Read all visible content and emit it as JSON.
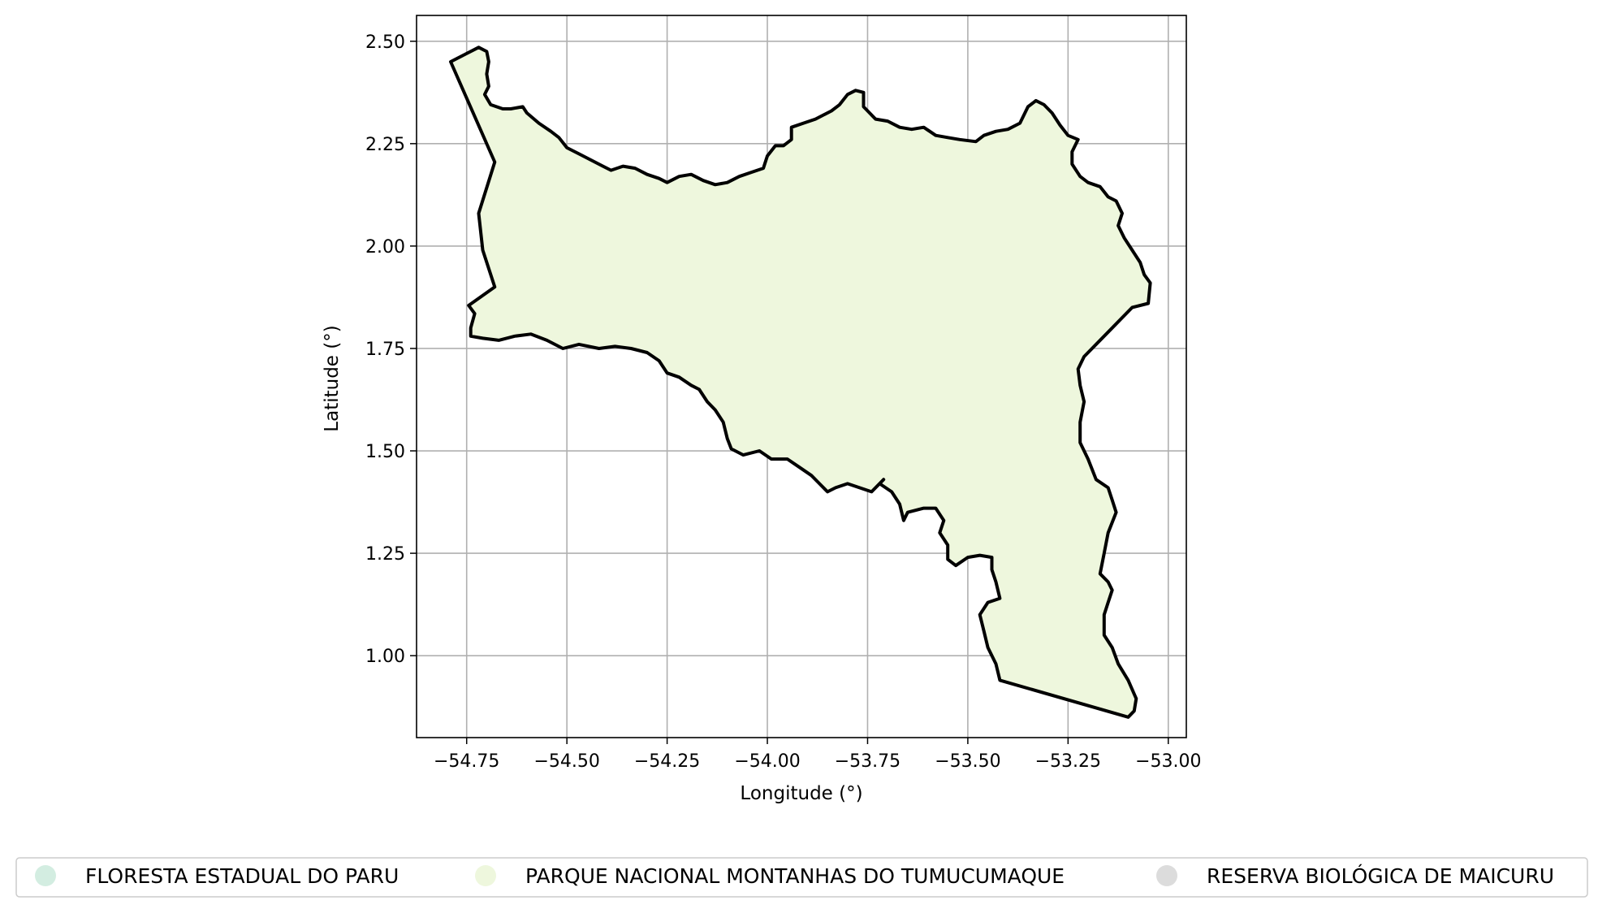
{
  "chart_data": {
    "type": "map",
    "xlabel": "Longitude (°)",
    "ylabel": "Latitude (°)",
    "xlim": [
      -54.875,
      -52.955
    ],
    "ylim": [
      0.8,
      2.563
    ],
    "x_ticks": [
      -54.75,
      -54.5,
      -54.25,
      -54.0,
      -53.75,
      -53.5,
      -53.25,
      -53.0
    ],
    "x_tick_labels": [
      "−54.75",
      "−54.50",
      "−54.25",
      "−54.00",
      "−53.75",
      "−53.50",
      "−53.25",
      "−53.00"
    ],
    "y_ticks": [
      1.0,
      1.25,
      1.5,
      1.75,
      2.0,
      2.25,
      2.5
    ],
    "y_tick_labels": [
      "1.00",
      "1.25",
      "1.50",
      "1.75",
      "2.00",
      "2.25",
      "2.50"
    ],
    "grid": true,
    "legend": {
      "placement": "bottom",
      "entries": [
        {
          "label": "FLORESTA ESTADUAL DO PARU",
          "color": "#d3ede1"
        },
        {
          "label": "PARQUE NACIONAL MONTANHAS DO TUMUCUMAQUE",
          "color": "#eef7dd"
        },
        {
          "label": "RESERVA BIOLÓGICA DE MAICURU",
          "color": "#dcdcdc"
        }
      ]
    },
    "regions": [
      {
        "name": "PARQUE NACIONAL MONTANHAS DO TUMUCUMAQUE",
        "fill": "#eef7dd",
        "stroke": "#000000",
        "boundary": [
          [
            -54.79,
            2.45
          ],
          [
            -54.75,
            2.47
          ],
          [
            -54.72,
            2.485
          ],
          [
            -54.7,
            2.475
          ],
          [
            -54.695,
            2.45
          ],
          [
            -54.7,
            2.42
          ],
          [
            -54.695,
            2.39
          ],
          [
            -54.705,
            2.37
          ],
          [
            -54.69,
            2.345
          ],
          [
            -54.66,
            2.335
          ],
          [
            -54.64,
            2.335
          ],
          [
            -54.61,
            2.34
          ],
          [
            -54.6,
            2.325
          ],
          [
            -54.57,
            2.3
          ],
          [
            -54.54,
            2.28
          ],
          [
            -54.52,
            2.265
          ],
          [
            -54.5,
            2.24
          ],
          [
            -54.47,
            2.225
          ],
          [
            -54.44,
            2.21
          ],
          [
            -54.41,
            2.195
          ],
          [
            -54.39,
            2.185
          ],
          [
            -54.36,
            2.195
          ],
          [
            -54.33,
            2.19
          ],
          [
            -54.3,
            2.175
          ],
          [
            -54.27,
            2.165
          ],
          [
            -54.25,
            2.155
          ],
          [
            -54.22,
            2.17
          ],
          [
            -54.19,
            2.175
          ],
          [
            -54.16,
            2.16
          ],
          [
            -54.13,
            2.15
          ],
          [
            -54.1,
            2.155
          ],
          [
            -54.07,
            2.17
          ],
          [
            -54.04,
            2.18
          ],
          [
            -54.01,
            2.19
          ],
          [
            -54.0,
            2.22
          ],
          [
            -53.98,
            2.245
          ],
          [
            -53.96,
            2.245
          ],
          [
            -53.94,
            2.26
          ],
          [
            -53.94,
            2.29
          ],
          [
            -53.91,
            2.3
          ],
          [
            -53.88,
            2.31
          ],
          [
            -53.86,
            2.32
          ],
          [
            -53.84,
            2.33
          ],
          [
            -53.82,
            2.345
          ],
          [
            -53.8,
            2.37
          ],
          [
            -53.78,
            2.38
          ],
          [
            -53.76,
            2.375
          ],
          [
            -53.76,
            2.34
          ],
          [
            -53.73,
            2.31
          ],
          [
            -53.7,
            2.305
          ],
          [
            -53.67,
            2.29
          ],
          [
            -53.64,
            2.285
          ],
          [
            -53.61,
            2.29
          ],
          [
            -53.58,
            2.27
          ],
          [
            -53.55,
            2.265
          ],
          [
            -53.52,
            2.26
          ],
          [
            -53.48,
            2.255
          ],
          [
            -53.46,
            2.27
          ],
          [
            -53.43,
            2.28
          ],
          [
            -53.4,
            2.285
          ],
          [
            -53.37,
            2.3
          ],
          [
            -53.35,
            2.34
          ],
          [
            -53.33,
            2.355
          ],
          [
            -53.31,
            2.345
          ],
          [
            -53.29,
            2.325
          ],
          [
            -53.27,
            2.295
          ],
          [
            -53.25,
            2.27
          ],
          [
            -53.225,
            2.26
          ],
          [
            -53.24,
            2.23
          ],
          [
            -53.24,
            2.2
          ],
          [
            -53.22,
            2.17
          ],
          [
            -53.2,
            2.155
          ],
          [
            -53.17,
            2.145
          ],
          [
            -53.15,
            2.12
          ],
          [
            -53.13,
            2.11
          ],
          [
            -53.115,
            2.08
          ],
          [
            -53.125,
            2.05
          ],
          [
            -53.11,
            2.02
          ],
          [
            -53.09,
            1.99
          ],
          [
            -53.07,
            1.96
          ],
          [
            -53.06,
            1.93
          ],
          [
            -53.045,
            1.91
          ],
          [
            -53.05,
            1.86
          ],
          [
            -53.09,
            1.85
          ],
          [
            -53.15,
            1.79
          ],
          [
            -53.21,
            1.73
          ],
          [
            -53.225,
            1.7
          ],
          [
            -53.22,
            1.66
          ],
          [
            -53.21,
            1.62
          ],
          [
            -53.22,
            1.57
          ],
          [
            -53.22,
            1.52
          ],
          [
            -53.2,
            1.48
          ],
          [
            -53.18,
            1.43
          ],
          [
            -53.15,
            1.41
          ],
          [
            -53.14,
            1.38
          ],
          [
            -53.13,
            1.35
          ],
          [
            -53.15,
            1.3
          ],
          [
            -53.16,
            1.25
          ],
          [
            -53.17,
            1.2
          ],
          [
            -53.15,
            1.18
          ],
          [
            -53.14,
            1.16
          ],
          [
            -53.15,
            1.13
          ],
          [
            -53.16,
            1.1
          ],
          [
            -53.16,
            1.05
          ],
          [
            -53.14,
            1.02
          ],
          [
            -53.125,
            0.98
          ],
          [
            -53.1,
            0.94
          ],
          [
            -53.08,
            0.895
          ],
          [
            -53.085,
            0.865
          ],
          [
            -53.1,
            0.85
          ],
          [
            -53.42,
            0.94
          ],
          [
            -53.43,
            0.98
          ],
          [
            -53.45,
            1.02
          ],
          [
            -53.46,
            1.06
          ],
          [
            -53.47,
            1.1
          ],
          [
            -53.45,
            1.13
          ],
          [
            -53.42,
            1.14
          ],
          [
            -53.43,
            1.18
          ],
          [
            -53.44,
            1.21
          ],
          [
            -53.44,
            1.24
          ],
          [
            -53.47,
            1.245
          ],
          [
            -53.5,
            1.24
          ],
          [
            -53.53,
            1.22
          ],
          [
            -53.55,
            1.235
          ],
          [
            -53.55,
            1.27
          ],
          [
            -53.57,
            1.3
          ],
          [
            -53.56,
            1.33
          ],
          [
            -53.58,
            1.36
          ],
          [
            -53.61,
            1.36
          ],
          [
            -53.65,
            1.35
          ],
          [
            -53.66,
            1.33
          ],
          [
            -53.67,
            1.37
          ],
          [
            -53.69,
            1.4
          ],
          [
            -53.72,
            1.42
          ],
          [
            -53.71,
            1.43
          ],
          [
            -53.74,
            1.4
          ],
          [
            -53.77,
            1.41
          ],
          [
            -53.8,
            1.42
          ],
          [
            -53.83,
            1.41
          ],
          [
            -53.85,
            1.4
          ],
          [
            -53.87,
            1.42
          ],
          [
            -53.89,
            1.44
          ],
          [
            -53.92,
            1.46
          ],
          [
            -53.95,
            1.48
          ],
          [
            -53.99,
            1.48
          ],
          [
            -54.02,
            1.5
          ],
          [
            -54.06,
            1.49
          ],
          [
            -54.09,
            1.505
          ],
          [
            -54.1,
            1.53
          ],
          [
            -54.11,
            1.57
          ],
          [
            -54.13,
            1.6
          ],
          [
            -54.15,
            1.62
          ],
          [
            -54.17,
            1.65
          ],
          [
            -54.19,
            1.66
          ],
          [
            -54.22,
            1.68
          ],
          [
            -54.25,
            1.69
          ],
          [
            -54.27,
            1.72
          ],
          [
            -54.3,
            1.74
          ],
          [
            -54.34,
            1.75
          ],
          [
            -54.38,
            1.755
          ],
          [
            -54.42,
            1.75
          ],
          [
            -54.47,
            1.76
          ],
          [
            -54.51,
            1.75
          ],
          [
            -54.55,
            1.77
          ],
          [
            -54.59,
            1.785
          ],
          [
            -54.63,
            1.78
          ],
          [
            -54.67,
            1.77
          ],
          [
            -54.71,
            1.775
          ],
          [
            -54.74,
            1.78
          ],
          [
            -54.74,
            1.8
          ],
          [
            -54.73,
            1.835
          ],
          [
            -54.745,
            1.855
          ],
          [
            -54.68,
            1.9
          ],
          [
            -54.71,
            1.99
          ],
          [
            -54.72,
            2.08
          ],
          [
            -54.68,
            2.205
          ],
          [
            -54.79,
            2.45
          ]
        ]
      }
    ]
  }
}
